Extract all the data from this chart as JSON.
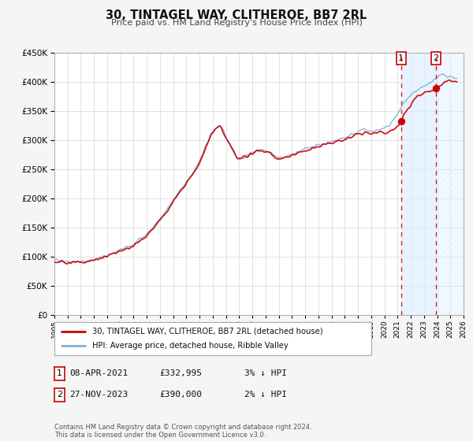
{
  "title": "30, TINTAGEL WAY, CLITHEROE, BB7 2RL",
  "subtitle": "Price paid vs. HM Land Registry's House Price Index (HPI)",
  "legend_label_red": "30, TINTAGEL WAY, CLITHEROE, BB7 2RL (detached house)",
  "legend_label_blue": "HPI: Average price, detached house, Ribble Valley",
  "footnote_line1": "Contains HM Land Registry data © Crown copyright and database right 2024.",
  "footnote_line2": "This data is licensed under the Open Government Licence v3.0.",
  "sale1_label": "08-APR-2021",
  "sale1_price": "£332,995",
  "sale1_pct": "3% ↓ HPI",
  "sale2_label": "27-NOV-2023",
  "sale2_price": "£390,000",
  "sale2_pct": "2% ↓ HPI",
  "sale1_year": 2021.27,
  "sale2_year": 2023.9,
  "sale1_value": 332995,
  "sale2_value": 390000,
  "red_color": "#cc0000",
  "blue_color": "#7fafd4",
  "vline_color": "#cc0000",
  "shade_color": "#ddeeff",
  "ylim": [
    0,
    450000
  ],
  "xlim_start": 1995,
  "xlim_end": 2026,
  "yticks": [
    0,
    50000,
    100000,
    150000,
    200000,
    250000,
    300000,
    350000,
    400000,
    450000
  ],
  "xticks": [
    1995,
    1996,
    1997,
    1998,
    1999,
    2000,
    2001,
    2002,
    2003,
    2004,
    2005,
    2006,
    2007,
    2008,
    2009,
    2010,
    2011,
    2012,
    2013,
    2014,
    2015,
    2016,
    2017,
    2018,
    2019,
    2020,
    2021,
    2022,
    2023,
    2024,
    2025,
    2026
  ],
  "background_color": "#f5f5f5",
  "plot_bg": "#ffffff",
  "grid_color": "#cccccc",
  "hpi_anchors_x": [
    1995,
    1996,
    1997,
    1998,
    1999,
    2000,
    2001,
    2002,
    2003,
    2004,
    2005,
    2006,
    2007,
    2007.5,
    2008,
    2008.5,
    2009,
    2009.5,
    2010,
    2010.5,
    2011,
    2011.5,
    2012,
    2012.5,
    2013,
    2013.5,
    2014,
    2014.5,
    2015,
    2015.5,
    2016,
    2016.5,
    2017,
    2017.5,
    2018,
    2018.5,
    2019,
    2019.5,
    2020,
    2020.5,
    2021,
    2021.5,
    2022,
    2022.5,
    2023,
    2023.5,
    2024,
    2024.5,
    2025,
    2025.5
  ],
  "hpi_anchors_y": [
    95000,
    93000,
    92000,
    96000,
    103000,
    112000,
    122000,
    140000,
    165000,
    197000,
    228000,
    265000,
    315000,
    325000,
    305000,
    285000,
    268000,
    272000,
    278000,
    285000,
    284000,
    278000,
    270000,
    272000,
    275000,
    280000,
    285000,
    290000,
    292000,
    295000,
    298000,
    302000,
    305000,
    310000,
    315000,
    318000,
    315000,
    318000,
    320000,
    330000,
    345000,
    365000,
    375000,
    385000,
    392000,
    400000,
    408000,
    412000,
    410000,
    405000
  ]
}
